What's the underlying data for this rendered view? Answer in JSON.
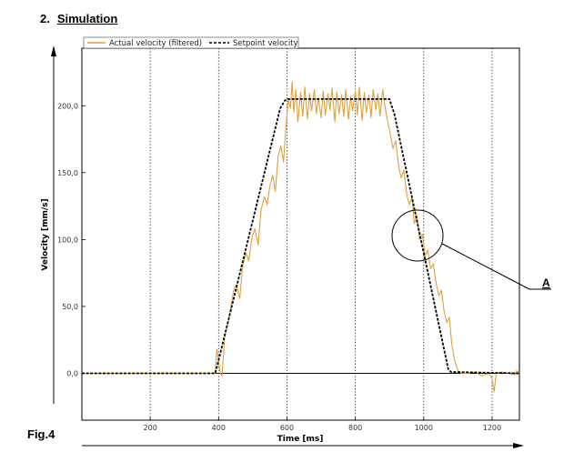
{
  "heading": {
    "number": "2.",
    "title": "Simulation"
  },
  "figure_label": "Fig.4",
  "colors": {
    "actual": "#E0A040",
    "setpoint": "#000000",
    "grid": "#000000",
    "frame": "#000000"
  },
  "chart_data": {
    "type": "line",
    "xlabel": "Time [ms]",
    "ylabel": "Velocity [mm/s]",
    "xlim": [
      0,
      1280
    ],
    "ylim": [
      -35,
      243
    ],
    "xticks": [
      200,
      400,
      600,
      800,
      1000,
      1200
    ],
    "xtick_labels": [
      "200",
      "400",
      "600",
      "800",
      "1000",
      "1200"
    ],
    "yticks": [
      0,
      50,
      100,
      150,
      200
    ],
    "ytick_labels": [
      "0,0",
      "50,0",
      "100,0",
      "150,0",
      "200,0"
    ],
    "grid": "vertical dotted",
    "legend_position": "top-left",
    "series": [
      {
        "name": "Actual velocity (filtered)",
        "style": "solid",
        "x": [
          0,
          390,
          395,
          405,
          410,
          418,
          426,
          435,
          444,
          452,
          462,
          470,
          480,
          488,
          498,
          506,
          516,
          524,
          534,
          542,
          550,
          558,
          566,
          574,
          582,
          590,
          597,
          604,
          610,
          615,
          620,
          626,
          632,
          640,
          646,
          652,
          660,
          666,
          672,
          680,
          686,
          692,
          700,
          706,
          712,
          720,
          726,
          732,
          740,
          746,
          752,
          760,
          766,
          772,
          780,
          786,
          792,
          800,
          806,
          812,
          820,
          826,
          832,
          840,
          846,
          852,
          860,
          866,
          872,
          880,
          886,
          893,
          900,
          910,
          918,
          926,
          934,
          942,
          950,
          958,
          966,
          972,
          980,
          988,
          996,
          1004,
          1012,
          1020,
          1028,
          1036,
          1044,
          1052,
          1060,
          1068,
          1075,
          1082,
          1090,
          1100,
          1110,
          1130,
          1150,
          1170,
          1190,
          1200,
          1206,
          1212,
          1230,
          1250,
          1268,
          1272,
          1280
        ],
        "y": [
          0,
          0,
          18,
          0,
          -2,
          28,
          36,
          48,
          62,
          66,
          56,
          80,
          90,
          84,
          102,
          108,
          96,
          122,
          132,
          126,
          140,
          148,
          136,
          162,
          170,
          158,
          184,
          205,
          198,
          218,
          195,
          212,
          188,
          210,
          192,
          214,
          190,
          209,
          196,
          212,
          194,
          206,
          191,
          211,
          193,
          209,
          197,
          213,
          188,
          210,
          194,
          208,
          192,
          212,
          190,
          207,
          196,
          211,
          193,
          214,
          189,
          210,
          195,
          208,
          191,
          212,
          197,
          209,
          192,
          212,
          201,
          190,
          182,
          168,
          174,
          156,
          146,
          152,
          134,
          126,
          132,
          112,
          118,
          100,
          104,
          88,
          92,
          78,
          82,
          68,
          58,
          62,
          46,
          38,
          42,
          22,
          10,
          2,
          0,
          0,
          1,
          -2,
          0,
          -4,
          -14,
          0,
          1,
          0,
          -1,
          2,
          0
        ]
      },
      {
        "name": "Setpoint velocity",
        "style": "dashed",
        "x": [
          0,
          390,
          402,
          580,
          594,
          600,
          606,
          900,
          906,
          914,
          1072,
          1080,
          1280
        ],
        "y": [
          0,
          0,
          12,
          198,
          204,
          205,
          205,
          205,
          200,
          194,
          3,
          1,
          0
        ]
      }
    ],
    "annotations": [
      {
        "label": "A",
        "type": "circle-callout",
        "x": 1000,
        "y": 100
      }
    ]
  }
}
